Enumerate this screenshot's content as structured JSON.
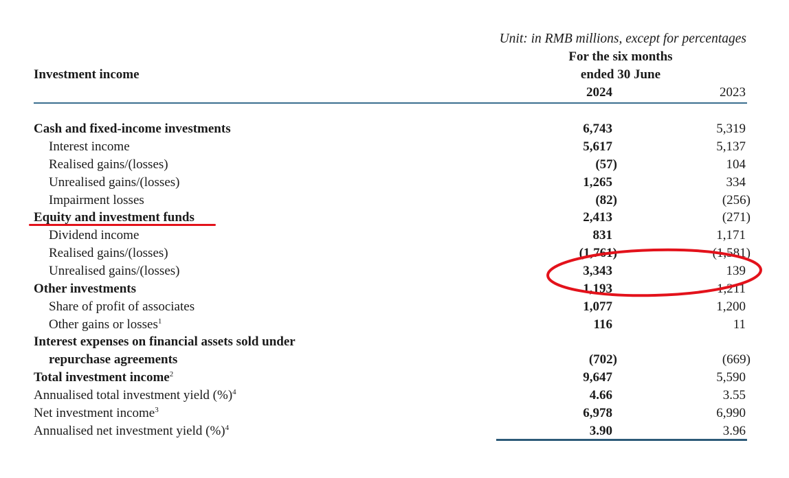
{
  "header": {
    "unit_note": "Unit: in RMB millions, except for percentages",
    "period_line1": "For the six months",
    "period_line2": "ended 30 June",
    "year_current": "2024",
    "year_prior": "2023",
    "section_title": "Investment income"
  },
  "rows": [
    {
      "label": "Cash and fixed-income investments",
      "v2024": "6,743",
      "v2023": "5,319"
    },
    {
      "label": "Interest income",
      "v2024": "5,617",
      "v2023": "5,137"
    },
    {
      "label": "Realised gains/(losses)",
      "v2024": "(57)",
      "v2023": "104"
    },
    {
      "label": "Unrealised gains/(losses)",
      "v2024": "1,265",
      "v2023": "334"
    },
    {
      "label": "Impairment losses",
      "v2024": "(82)",
      "v2023": "(256)"
    },
    {
      "label": "Equity and investment funds",
      "v2024": "2,413",
      "v2023": "(271)"
    },
    {
      "label": "Dividend income",
      "v2024": "831",
      "v2023": "1,171"
    },
    {
      "label": "Realised gains/(losses)",
      "v2024": "(1,761)",
      "v2023": "(1,581)"
    },
    {
      "label": "Unrealised gains/(losses)",
      "v2024": "3,343",
      "v2023": "139"
    },
    {
      "label": "Other investments",
      "v2024": "1,193",
      "v2023": "1,211"
    },
    {
      "label": "Share of profit of associates",
      "v2024": "1,077",
      "v2023": "1,200"
    },
    {
      "label": "Other gains or losses",
      "sup": "1",
      "v2024": "116",
      "v2023": "11"
    },
    {
      "label": "Interest expenses on financial assets sold under",
      "v2024": "",
      "v2023": ""
    },
    {
      "label": "repurchase agreements",
      "v2024": "(702)",
      "v2023": "(669)"
    },
    {
      "label": "Total investment income",
      "sup": "2",
      "v2024": "9,647",
      "v2023": "5,590"
    },
    {
      "label": "Annualised total investment yield (%)",
      "sup": "4",
      "v2024": "4.66",
      "v2023": "3.55"
    },
    {
      "label": "Net investment income",
      "sup": "3",
      "v2024": "6,978",
      "v2023": "6,990"
    },
    {
      "label": "Annualised net investment yield (%)",
      "sup": "4",
      "v2024": "3.90",
      "v2023": "3.96"
    }
  ],
  "annotations": {
    "color": "#e3121b"
  }
}
